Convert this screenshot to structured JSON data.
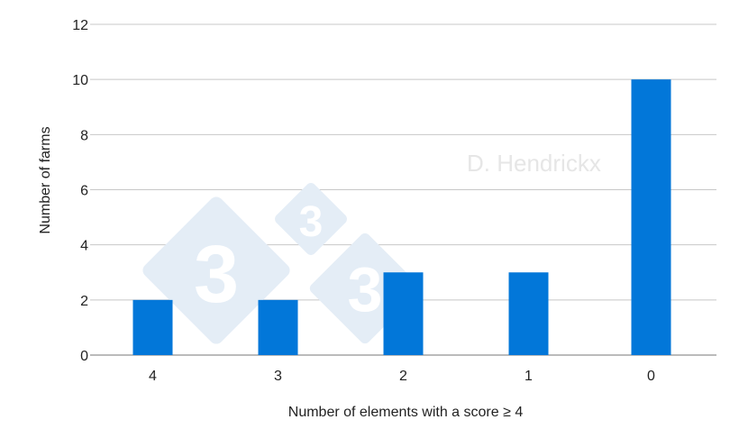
{
  "chart_data": {
    "type": "bar",
    "title": "",
    "xlabel": "Number of elements with a score ≥ 4",
    "ylabel": "Number of farms",
    "categories": [
      "4",
      "3",
      "2",
      "1",
      "0"
    ],
    "values": [
      2,
      2,
      3,
      3,
      10
    ],
    "ylim": [
      0,
      12
    ],
    "yticks": [
      0,
      2,
      4,
      6,
      8,
      10,
      12
    ],
    "grid": true,
    "legend": "none",
    "bar_color": "#0277d9"
  },
  "watermark": {
    "text": "D. Hendrickx",
    "logo_text": "3"
  }
}
